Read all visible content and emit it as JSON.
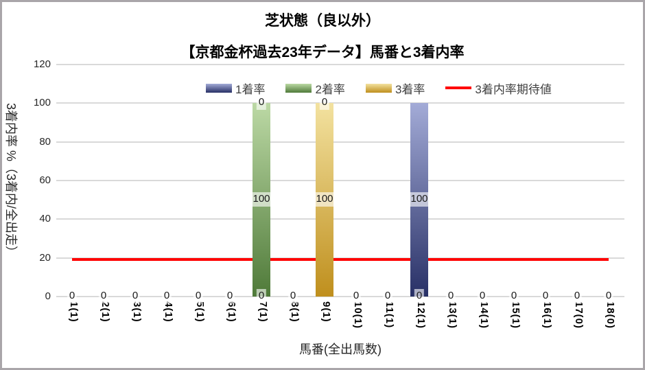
{
  "title": "芝状態（良以外）",
  "subtitle": "【京都金杯過去23年データ】馬番と3着内率",
  "chart_data": {
    "type": "bar",
    "stacked": true,
    "title": "芝状態（良以外）",
    "subtitle": "【京都金杯過去23年データ】馬番と3着内率",
    "categories": [
      "1(1)",
      "2(1)",
      "3(1)",
      "4(1)",
      "5(1)",
      "6(1)",
      "7(1)",
      "8(1)",
      "9(1)",
      "10(1)",
      "11(1)",
      "12(1)",
      "13(1)",
      "14(1)",
      "15(1)",
      "16(1)",
      "17(0)",
      "18(0)"
    ],
    "series": [
      {
        "name": "1着率",
        "color_top": "#a3abd7",
        "color_bottom": "#283066",
        "values": [
          0,
          0,
          0,
          0,
          0,
          0,
          0,
          0,
          0,
          0,
          0,
          100,
          0,
          0,
          0,
          0,
          0,
          0
        ]
      },
      {
        "name": "2着率",
        "color_top": "#bcd9a5",
        "color_bottom": "#4f7a39",
        "values": [
          0,
          0,
          0,
          0,
          0,
          0,
          100,
          0,
          0,
          0,
          0,
          0,
          0,
          0,
          0,
          0,
          0,
          0
        ]
      },
      {
        "name": "3着率",
        "color_top": "#f3e2a0",
        "color_bottom": "#bf8f1d",
        "values": [
          0,
          0,
          0,
          0,
          0,
          0,
          0,
          0,
          100,
          0,
          0,
          0,
          0,
          0,
          0,
          0,
          0,
          0
        ]
      }
    ],
    "expected_line": {
      "name": "3着内率期待値",
      "color": "#ff0000",
      "value": 19
    },
    "ylabel": "3着内率 %（3着内/全出走）",
    "xlabel": "馬番(全出馬数)",
    "ylim": [
      0,
      120
    ],
    "yticks": [
      0,
      20,
      40,
      60,
      80,
      100,
      120
    ],
    "grid": true,
    "legend_position": "top",
    "gridline_color": "#d9d9d9"
  }
}
